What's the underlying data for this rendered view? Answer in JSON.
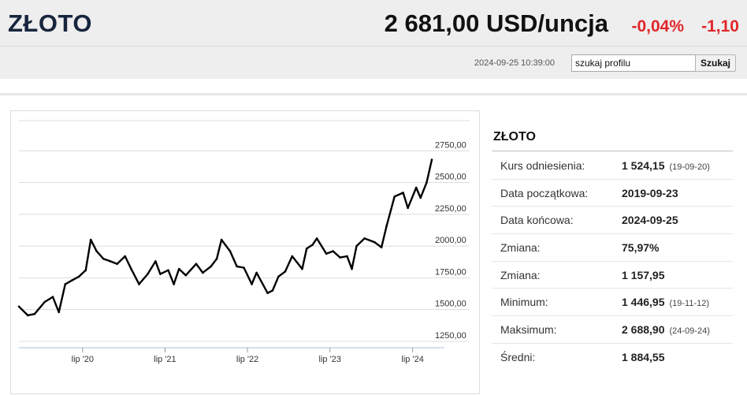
{
  "header": {
    "title": "ZŁOTO",
    "price": "2 681,00 USD/uncja",
    "change_pct": "-0,04%",
    "change_abs": "-1,10",
    "timestamp": "2024-09-25 10:39:00",
    "search": {
      "value": "szukaj profilu",
      "button_label": "Szukaj"
    }
  },
  "info": {
    "title": "ZŁOTO",
    "rows": [
      {
        "label": "Kurs odniesienia:",
        "value": "1 524,15",
        "sub": "(19-09-20)"
      },
      {
        "label": "Data początkowa:",
        "value": "2019-09-23",
        "sub": ""
      },
      {
        "label": "Data końcowa:",
        "value": "2024-09-25",
        "sub": ""
      },
      {
        "label": "Zmiana:",
        "value": "75,97%",
        "sub": ""
      },
      {
        "label": "Zmiana:",
        "value": "1 157,95",
        "sub": ""
      },
      {
        "label": "Minimum:",
        "value": "1 446,95",
        "sub": "(19-11-12)"
      },
      {
        "label": "Maksimum:",
        "value": "2 688,90",
        "sub": "(24-09-24)"
      },
      {
        "label": "Średni:",
        "value": "1 884,55",
        "sub": ""
      }
    ]
  },
  "colors": {
    "title": "#18253e",
    "negative": "#e0262a",
    "series": "#000000"
  },
  "chart_data": {
    "type": "line",
    "x_tick_labels": [
      "lip '20",
      "lip '21",
      "lip '22",
      "lip '23",
      "lip '24"
    ],
    "y_tick_labels": [
      "2750,00",
      "2500,00",
      "2250,00",
      "2000,00",
      "1750,00",
      "1500,00",
      "1250,00"
    ],
    "y_ticks": [
      2750,
      2500,
      2250,
      2000,
      1750,
      1500,
      1250
    ],
    "ylim": [
      1200,
      3000
    ],
    "grid": true,
    "series": [
      {
        "x": [
          "2019-09-23",
          "2019-11-01",
          "2019-12-01",
          "2020-01-15",
          "2020-02-20",
          "2020-03-18",
          "2020-04-15",
          "2020-05-15",
          "2020-06-15",
          "2020-07-15",
          "2020-08-06",
          "2020-09-01",
          "2020-10-01",
          "2020-11-01",
          "2020-12-01",
          "2021-01-05",
          "2021-02-01",
          "2021-03-08",
          "2021-04-15",
          "2021-05-20",
          "2021-06-10",
          "2021-07-15",
          "2021-08-09",
          "2021-09-01",
          "2021-10-01",
          "2021-11-16",
          "2021-12-15",
          "2022-01-20",
          "2022-02-15",
          "2022-03-08",
          "2022-04-15",
          "2022-05-15",
          "2022-06-15",
          "2022-07-20",
          "2022-08-10",
          "2022-09-28",
          "2022-10-20",
          "2022-11-15",
          "2022-12-15",
          "2023-01-15",
          "2023-02-28",
          "2023-03-20",
          "2023-04-15",
          "2023-05-04",
          "2023-06-15",
          "2023-07-15",
          "2023-08-15",
          "2023-09-15",
          "2023-10-06",
          "2023-10-27",
          "2023-12-01",
          "2024-01-15",
          "2024-02-14",
          "2024-03-08",
          "2024-04-12",
          "2024-05-20",
          "2024-06-10",
          "2024-07-17",
          "2024-08-05",
          "2024-09-01",
          "2024-09-24"
        ],
        "y": [
          1524,
          1455,
          1465,
          1560,
          1600,
          1480,
          1700,
          1730,
          1760,
          1810,
          2050,
          1960,
          1900,
          1880,
          1860,
          1920,
          1820,
          1700,
          1780,
          1880,
          1780,
          1810,
          1700,
          1820,
          1770,
          1860,
          1790,
          1840,
          1900,
          2050,
          1960,
          1840,
          1830,
          1700,
          1790,
          1630,
          1650,
          1760,
          1800,
          1920,
          1820,
          1980,
          2010,
          2060,
          1940,
          1960,
          1910,
          1920,
          1820,
          2000,
          2060,
          2030,
          1990,
          2160,
          2390,
          2420,
          2300,
          2460,
          2380,
          2500,
          2680
        ]
      }
    ]
  }
}
